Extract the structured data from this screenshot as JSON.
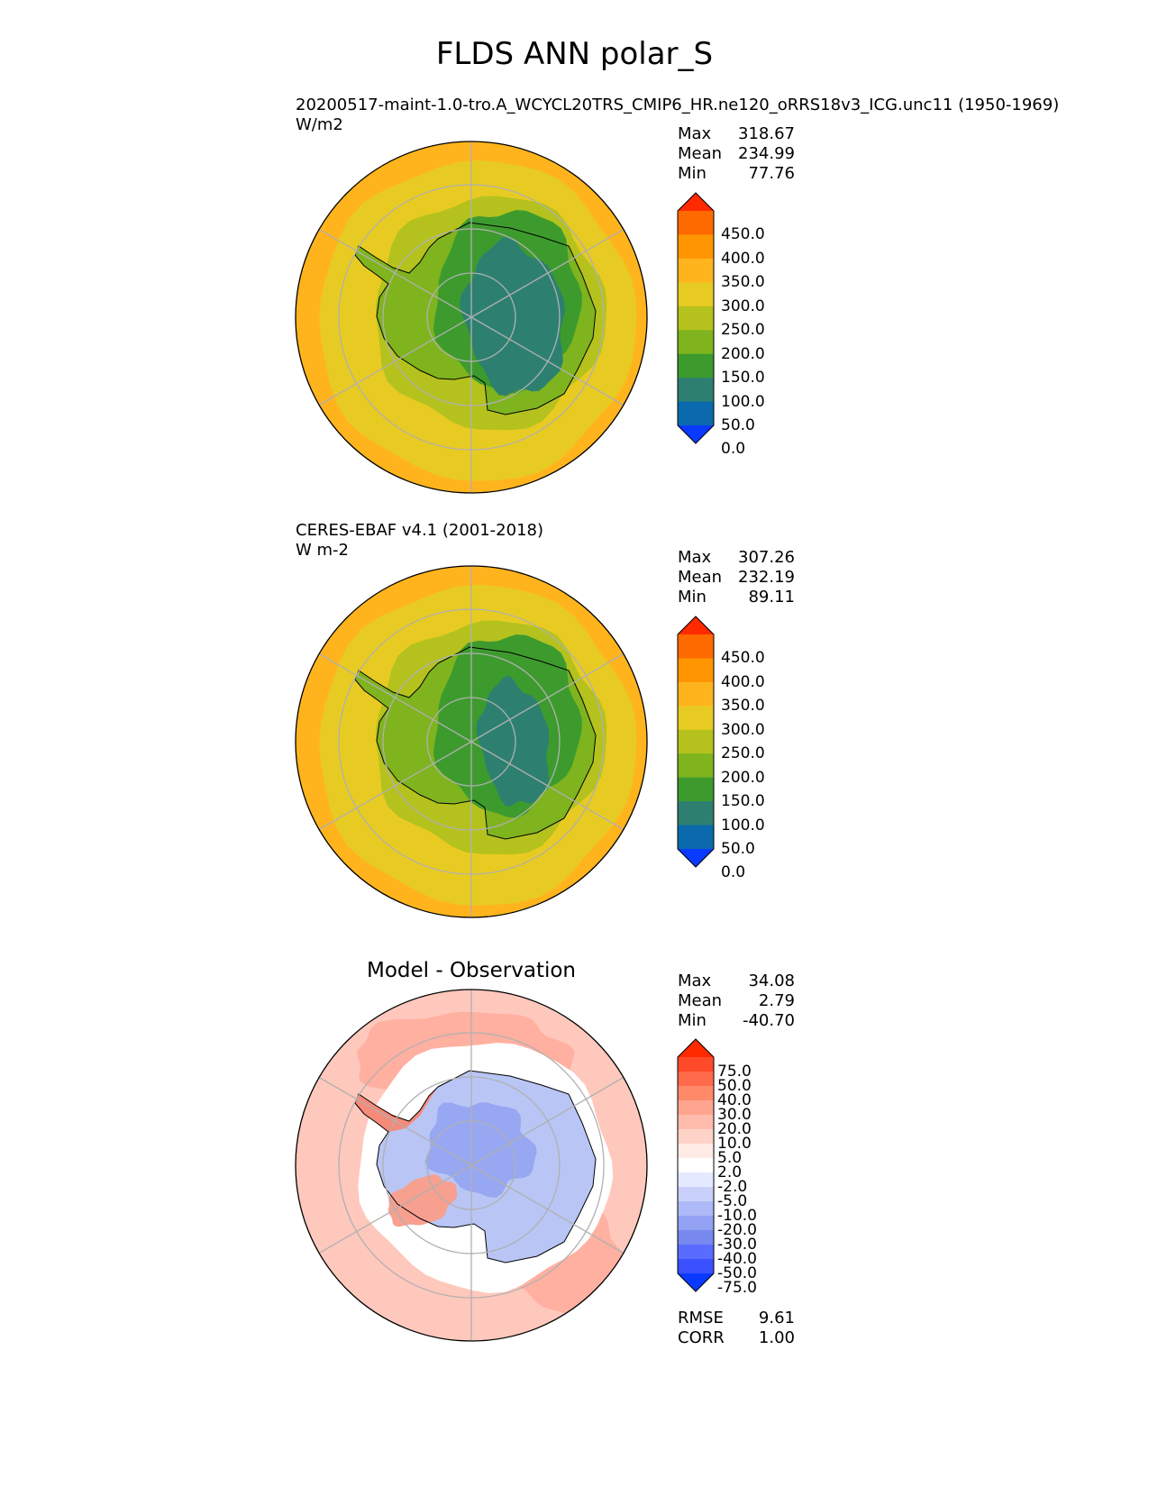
{
  "figure": {
    "title": "FLDS ANN polar_S"
  },
  "panels": [
    {
      "id": "model",
      "title_line1": "20200517-maint-1.0-tro.A_WCYCL20TRS_CMIP6_HR.ne120_oRRS18v3_ICG.unc11 (1950-1969)",
      "title_line2": "W/m2",
      "stats": [
        {
          "label": "Max",
          "value": "318.67"
        },
        {
          "label": "Mean",
          "value": "234.99"
        },
        {
          "label": "Min",
          "value": "77.76"
        }
      ],
      "colorbar": {
        "labels": [
          "450.0",
          "400.0",
          "350.0",
          "300.0",
          "250.0",
          "200.0",
          "150.0",
          "100.0",
          "50.0",
          "0.0"
        ],
        "colors_top_to_bottom": [
          "#ff2a00",
          "#ff6a00",
          "#ff9500",
          "#ffb41e",
          "#e8cb22",
          "#b5c21e",
          "#7fb41e",
          "#3d9b2d",
          "#2d8070",
          "#0a6aad",
          "#0a3aff"
        ]
      },
      "map": {
        "ocean_color": "#e8cb22",
        "rim_color": "#ffb41e",
        "ice_edge_color": "#b5c21e",
        "continent_color": "#7fb41e",
        "inner_color": "#3d9b2d",
        "plateau_color": "#2d8070"
      }
    },
    {
      "id": "observation",
      "title_line1": "CERES-EBAF v4.1 (2001-2018)",
      "title_line2": "W m-2",
      "stats": [
        {
          "label": "Max",
          "value": "307.26"
        },
        {
          "label": "Mean",
          "value": "232.19"
        },
        {
          "label": "Min",
          "value": "89.11"
        }
      ],
      "colorbar": {
        "labels": [
          "450.0",
          "400.0",
          "350.0",
          "300.0",
          "250.0",
          "200.0",
          "150.0",
          "100.0",
          "50.0",
          "0.0"
        ],
        "colors_top_to_bottom": [
          "#ff2a00",
          "#ff6a00",
          "#ff9500",
          "#ffb41e",
          "#e8cb22",
          "#b5c21e",
          "#7fb41e",
          "#3d9b2d",
          "#2d8070",
          "#0a6aad",
          "#0a3aff"
        ]
      },
      "map": {
        "ocean_color": "#e8cb22",
        "rim_color": "#ffb41e",
        "ice_edge_color": "#b5c21e",
        "continent_color": "#7fb41e",
        "inner_color": "#3d9b2d",
        "plateau_color": "#2d8070"
      }
    },
    {
      "id": "difference",
      "title": "Model - Observation",
      "stats": [
        {
          "label": "Max",
          "value": "34.08"
        },
        {
          "label": "Mean",
          "value": "2.79"
        },
        {
          "label": "Min",
          "value": "-40.70"
        }
      ],
      "bottom_stats": [
        {
          "label": "RMSE",
          "value": "9.61"
        },
        {
          "label": "CORR",
          "value": "1.00"
        }
      ],
      "colorbar": {
        "labels": [
          "75.0",
          "50.0",
          "40.0",
          "30.0",
          "20.0",
          "10.0",
          "5.0",
          "2.0",
          "-2.0",
          "-5.0",
          "-10.0",
          "-20.0",
          "-30.0",
          "-40.0",
          "-50.0",
          "-75.0"
        ],
        "colors_top_to_bottom": [
          "#ff2a00",
          "#ff4a2a",
          "#ff6a4a",
          "#ff8a6a",
          "#ffa58f",
          "#ffbcad",
          "#ffd3c8",
          "#ffebe5",
          "#ffffff",
          "#e5e9ff",
          "#c9d1fb",
          "#aebaf7",
          "#93a2f3",
          "#7788ef",
          "#5a6cff",
          "#3a50ff",
          "#0a3aff"
        ]
      },
      "map": {
        "ocean_color": "#ffc8bc",
        "ring_color": "#ffffff",
        "continent_color": "#b9c6f5",
        "peninsula_color": "#f58a78"
      }
    }
  ]
}
